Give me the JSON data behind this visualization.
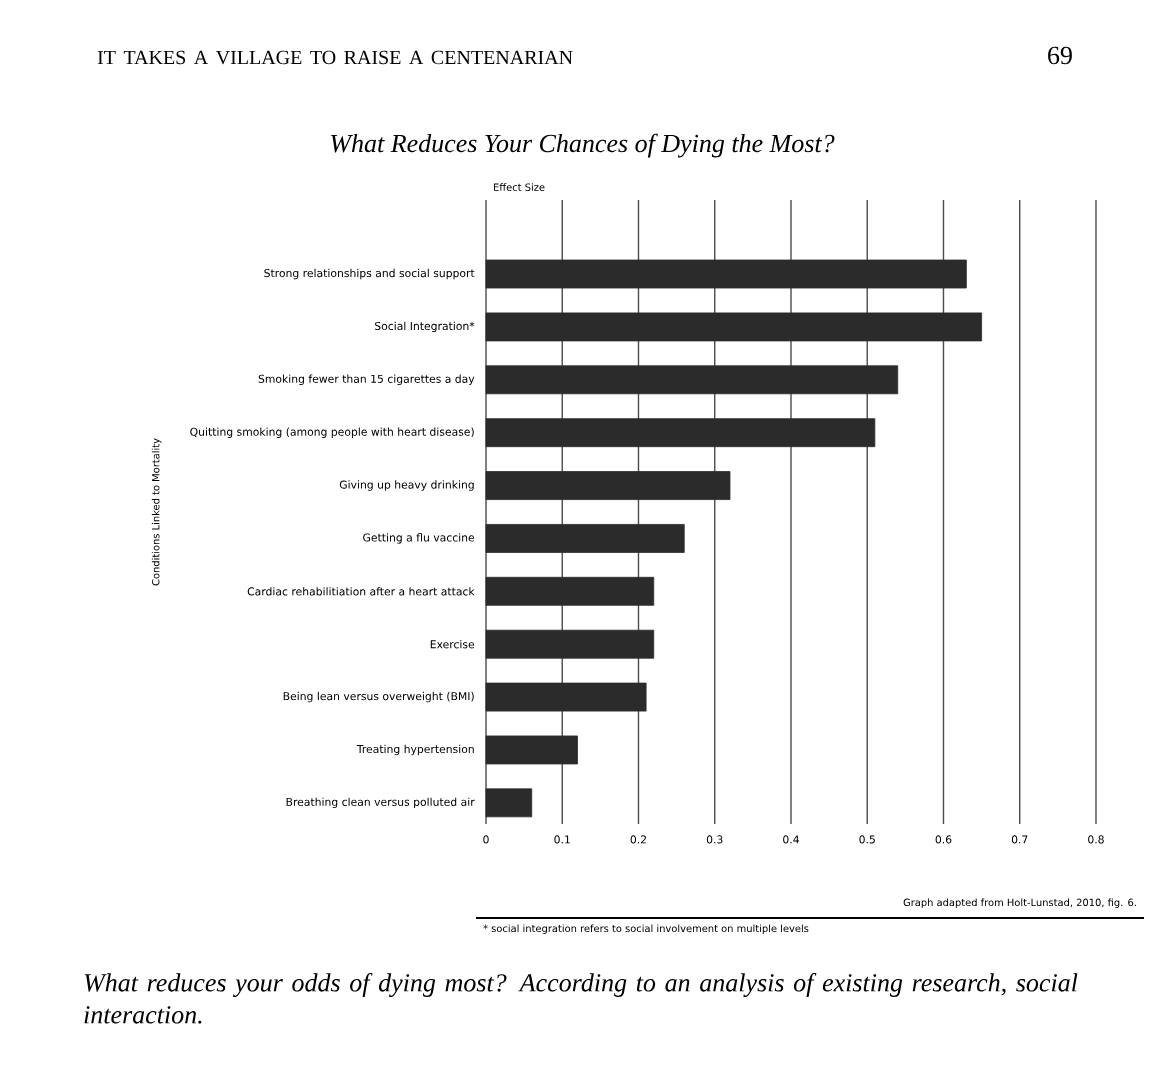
{
  "chart_data": {
    "type": "bar",
    "orientation": "horizontal",
    "title": "What Reduces Your Chances of Dying the Most?",
    "xlabel": "Effect Size",
    "ylabel": "Conditions Linked to Mortality",
    "categories": [
      "Strong relationships and social support",
      "Social Integration*",
      "Smoking fewer than 15 cigarettes a day",
      "Quitting smoking (among people with heart disease)",
      "Giving up heavy drinking",
      "Getting a flu vaccine",
      "Cardiac rehabilitiation after a heart attack",
      "Exercise",
      "Being lean versus overweight (BMI)",
      "Treating hypertension",
      "Breathing clean versus polluted air"
    ],
    "values": [
      0.63,
      0.65,
      0.54,
      0.51,
      0.32,
      0.26,
      0.22,
      0.22,
      0.21,
      0.12,
      0.06
    ],
    "color": "#2b2b2b",
    "xlim": [
      0,
      0.8
    ],
    "xticks": [
      0,
      0.1,
      0.2,
      0.3,
      0.4,
      0.5,
      0.6,
      0.7,
      0.8
    ],
    "grid": "x",
    "annotations": [
      "IT TAKES A VILLAGE TO RAISE A CENTENARIAN",
      "69",
      "Graph adapted from Holt-Lunstad, 2010, fig. 6.",
      "* social integration refers to social involvement on multiple levels",
      "What reduces your odds of dying most? According to an analysis of existing research, social interaction."
    ]
  }
}
